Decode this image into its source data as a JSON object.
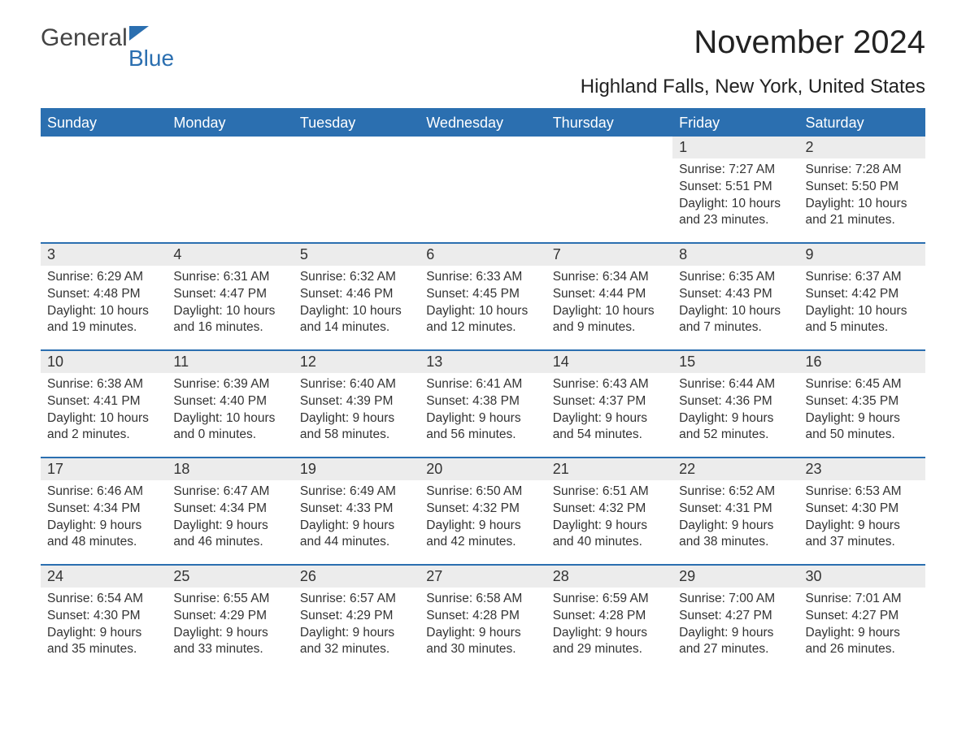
{
  "logo": {
    "general": "General",
    "blue": "Blue"
  },
  "title": "November 2024",
  "location": "Highland Falls, New York, United States",
  "day_names": [
    "Sunday",
    "Monday",
    "Tuesday",
    "Wednesday",
    "Thursday",
    "Friday",
    "Saturday"
  ],
  "colors": {
    "primary": "#2b6fb0",
    "header_text": "#ffffff",
    "daynum_bg": "#ececec",
    "text": "#333333"
  },
  "weeks": [
    [
      null,
      null,
      null,
      null,
      null,
      {
        "d": "1",
        "sr": "7:27 AM",
        "ss": "5:51 PM",
        "dl1": "10 hours",
        "dl2": "and 23 minutes."
      },
      {
        "d": "2",
        "sr": "7:28 AM",
        "ss": "5:50 PM",
        "dl1": "10 hours",
        "dl2": "and 21 minutes."
      }
    ],
    [
      {
        "d": "3",
        "sr": "6:29 AM",
        "ss": "4:48 PM",
        "dl1": "10 hours",
        "dl2": "and 19 minutes."
      },
      {
        "d": "4",
        "sr": "6:31 AM",
        "ss": "4:47 PM",
        "dl1": "10 hours",
        "dl2": "and 16 minutes."
      },
      {
        "d": "5",
        "sr": "6:32 AM",
        "ss": "4:46 PM",
        "dl1": "10 hours",
        "dl2": "and 14 minutes."
      },
      {
        "d": "6",
        "sr": "6:33 AM",
        "ss": "4:45 PM",
        "dl1": "10 hours",
        "dl2": "and 12 minutes."
      },
      {
        "d": "7",
        "sr": "6:34 AM",
        "ss": "4:44 PM",
        "dl1": "10 hours",
        "dl2": "and 9 minutes."
      },
      {
        "d": "8",
        "sr": "6:35 AM",
        "ss": "4:43 PM",
        "dl1": "10 hours",
        "dl2": "and 7 minutes."
      },
      {
        "d": "9",
        "sr": "6:37 AM",
        "ss": "4:42 PM",
        "dl1": "10 hours",
        "dl2": "and 5 minutes."
      }
    ],
    [
      {
        "d": "10",
        "sr": "6:38 AM",
        "ss": "4:41 PM",
        "dl1": "10 hours",
        "dl2": "and 2 minutes."
      },
      {
        "d": "11",
        "sr": "6:39 AM",
        "ss": "4:40 PM",
        "dl1": "10 hours",
        "dl2": "and 0 minutes."
      },
      {
        "d": "12",
        "sr": "6:40 AM",
        "ss": "4:39 PM",
        "dl1": "9 hours",
        "dl2": "and 58 minutes."
      },
      {
        "d": "13",
        "sr": "6:41 AM",
        "ss": "4:38 PM",
        "dl1": "9 hours",
        "dl2": "and 56 minutes."
      },
      {
        "d": "14",
        "sr": "6:43 AM",
        "ss": "4:37 PM",
        "dl1": "9 hours",
        "dl2": "and 54 minutes."
      },
      {
        "d": "15",
        "sr": "6:44 AM",
        "ss": "4:36 PM",
        "dl1": "9 hours",
        "dl2": "and 52 minutes."
      },
      {
        "d": "16",
        "sr": "6:45 AM",
        "ss": "4:35 PM",
        "dl1": "9 hours",
        "dl2": "and 50 minutes."
      }
    ],
    [
      {
        "d": "17",
        "sr": "6:46 AM",
        "ss": "4:34 PM",
        "dl1": "9 hours",
        "dl2": "and 48 minutes."
      },
      {
        "d": "18",
        "sr": "6:47 AM",
        "ss": "4:34 PM",
        "dl1": "9 hours",
        "dl2": "and 46 minutes."
      },
      {
        "d": "19",
        "sr": "6:49 AM",
        "ss": "4:33 PM",
        "dl1": "9 hours",
        "dl2": "and 44 minutes."
      },
      {
        "d": "20",
        "sr": "6:50 AM",
        "ss": "4:32 PM",
        "dl1": "9 hours",
        "dl2": "and 42 minutes."
      },
      {
        "d": "21",
        "sr": "6:51 AM",
        "ss": "4:32 PM",
        "dl1": "9 hours",
        "dl2": "and 40 minutes."
      },
      {
        "d": "22",
        "sr": "6:52 AM",
        "ss": "4:31 PM",
        "dl1": "9 hours",
        "dl2": "and 38 minutes."
      },
      {
        "d": "23",
        "sr": "6:53 AM",
        "ss": "4:30 PM",
        "dl1": "9 hours",
        "dl2": "and 37 minutes."
      }
    ],
    [
      {
        "d": "24",
        "sr": "6:54 AM",
        "ss": "4:30 PM",
        "dl1": "9 hours",
        "dl2": "and 35 minutes."
      },
      {
        "d": "25",
        "sr": "6:55 AM",
        "ss": "4:29 PM",
        "dl1": "9 hours",
        "dl2": "and 33 minutes."
      },
      {
        "d": "26",
        "sr": "6:57 AM",
        "ss": "4:29 PM",
        "dl1": "9 hours",
        "dl2": "and 32 minutes."
      },
      {
        "d": "27",
        "sr": "6:58 AM",
        "ss": "4:28 PM",
        "dl1": "9 hours",
        "dl2": "and 30 minutes."
      },
      {
        "d": "28",
        "sr": "6:59 AM",
        "ss": "4:28 PM",
        "dl1": "9 hours",
        "dl2": "and 29 minutes."
      },
      {
        "d": "29",
        "sr": "7:00 AM",
        "ss": "4:27 PM",
        "dl1": "9 hours",
        "dl2": "and 27 minutes."
      },
      {
        "d": "30",
        "sr": "7:01 AM",
        "ss": "4:27 PM",
        "dl1": "9 hours",
        "dl2": "and 26 minutes."
      }
    ]
  ],
  "labels": {
    "sunrise": "Sunrise:",
    "sunset": "Sunset:",
    "daylight": "Daylight:"
  }
}
